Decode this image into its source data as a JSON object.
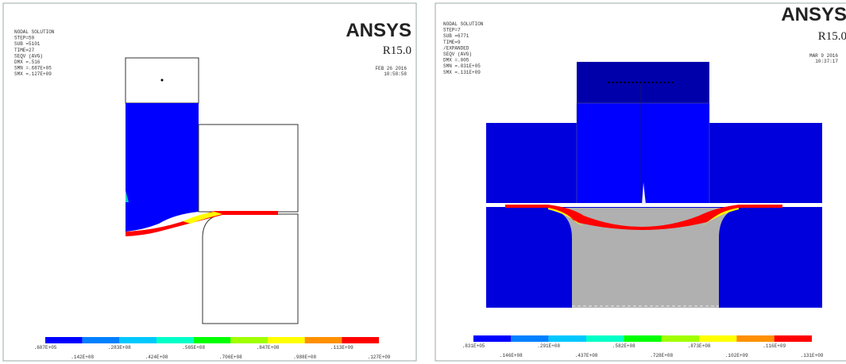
{
  "panels": [
    {
      "logo": "ANSYS",
      "release": "R15.0",
      "date": "FEB 26 2016",
      "time": "10:58:58",
      "info": [
        "NODAL SOLUTION",
        "STEP=50",
        "SUB =5101",
        "TIME=27",
        "SEQV     (AVG)",
        "DMX =.516",
        "SMN =.687E+05",
        "SMX =.127E+09"
      ],
      "legend": {
        "colors": [
          "#0000ff",
          "#0080ff",
          "#00c8ff",
          "#00ffc8",
          "#00ff00",
          "#a0ff00",
          "#ffff00",
          "#ff9000",
          "#ff0000"
        ],
        "labels": [
          ".687E+05",
          ".142E+08",
          ".283E+08",
          ".424E+08",
          ".565E+08",
          ".706E+08",
          ".847E+08",
          ".988E+08",
          ".113E+09",
          ".127E+09"
        ]
      }
    },
    {
      "logo": "ANSYS",
      "release": "R15.0",
      "date": "MAR  9 2016",
      "time": "10:37:17",
      "info": [
        "NODAL SOLUTION",
        "STEP=7",
        "SUB =6771",
        "TIME=9",
        "/EXPANDED",
        "SEQV     (AVG)",
        "DMX =.005",
        "SMN =.831E+05",
        "SMX =.131E+09"
      ],
      "legend": {
        "colors": [
          "#0000ff",
          "#0080ff",
          "#00c8ff",
          "#00ffc8",
          "#00ff00",
          "#a0ff00",
          "#ffff00",
          "#ff9000",
          "#ff0000"
        ],
        "labels": [
          ".831E+05",
          ".146E+08",
          ".291E+08",
          ".437E+08",
          ".582E+08",
          ".728E+08",
          ".873E+08",
          ".102E+09",
          ".116E+09",
          ".131E+09"
        ]
      }
    }
  ]
}
